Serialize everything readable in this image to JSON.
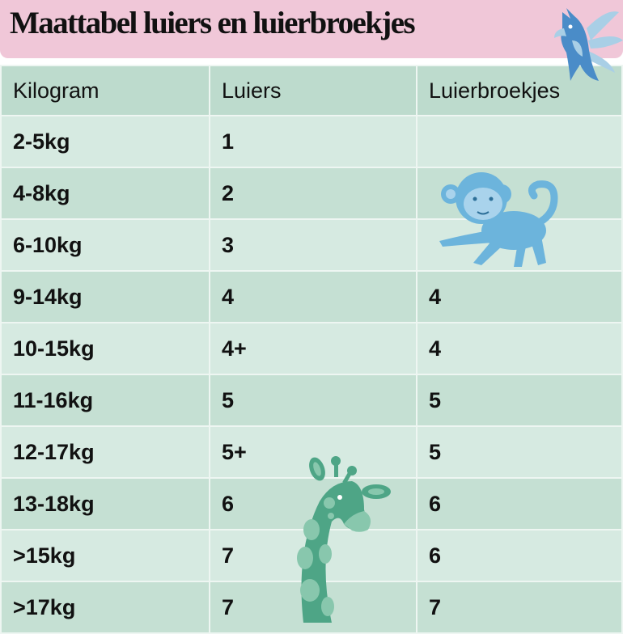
{
  "title": "Maattabel luiers en luierbroekjes",
  "table": {
    "headers": [
      "Kilogram",
      "Luiers",
      "Luierbroekjes"
    ],
    "rows": [
      [
        "2-5kg",
        "1",
        ""
      ],
      [
        "4-8kg",
        "2",
        ""
      ],
      [
        "6-10kg",
        "3",
        ""
      ],
      [
        "9-14kg",
        "4",
        "4"
      ],
      [
        "10-15kg",
        "4+",
        "4"
      ],
      [
        "11-16kg",
        "5",
        "5"
      ],
      [
        "12-17kg",
        "5+",
        "5"
      ],
      [
        "13-18kg",
        "6",
        "6"
      ],
      [
        ">15kg",
        "7",
        "6"
      ],
      [
        ">17kg",
        "7",
        "7"
      ]
    ]
  },
  "colors": {
    "banner": "#f0c7d8",
    "header": "#bddbcd",
    "row_light": "#d6eae1",
    "row_dark": "#c5e0d3"
  },
  "illustrations": [
    "parrot-icon",
    "monkey-icon",
    "giraffe-icon"
  ]
}
